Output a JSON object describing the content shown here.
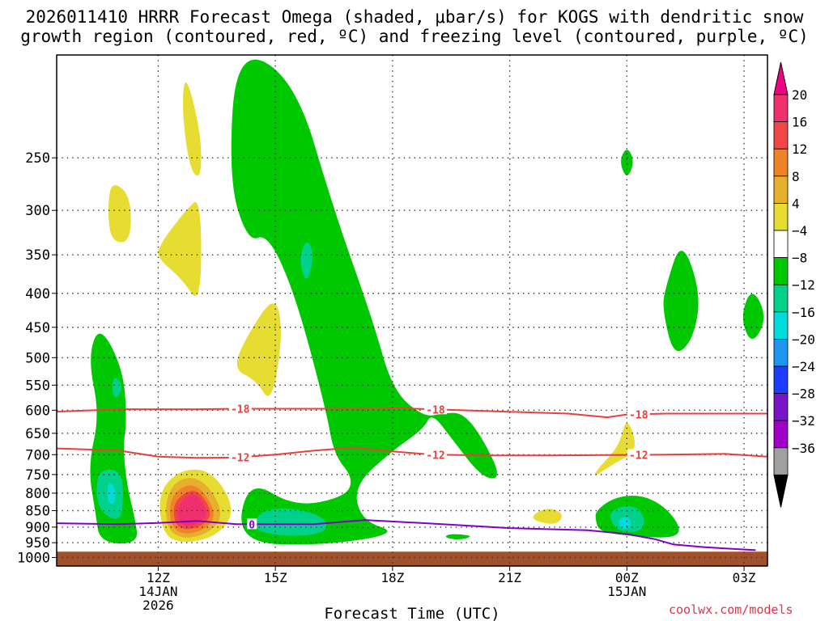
{
  "chart_data": {
    "type": "contour",
    "title_line1": "2026011410 HRRR Forecast Omega (shaded, μbar/s) for KOGS with dendritic snow",
    "title_line2": "growth region (contoured, red, ºC) and freezing level (contoured, purple, ºC)",
    "xlabel": "Forecast Time (UTC)",
    "x_axis": {
      "unit": "forecast hour since 10Z 14JAN2026",
      "range": [
        -0.6,
        17.6
      ],
      "ticks": [
        {
          "hour": 2,
          "label": "12Z",
          "sub1": "14JAN",
          "sub2": "2026"
        },
        {
          "hour": 5,
          "label": "15Z",
          "sub1": "",
          "sub2": ""
        },
        {
          "hour": 8,
          "label": "18Z",
          "sub1": "",
          "sub2": ""
        },
        {
          "hour": 11,
          "label": "21Z",
          "sub1": "",
          "sub2": ""
        },
        {
          "hour": 14,
          "label": "00Z",
          "sub1": "15JAN",
          "sub2": ""
        },
        {
          "hour": 17,
          "label": "03Z",
          "sub1": "",
          "sub2": ""
        }
      ]
    },
    "y_axis": {
      "unit": "hPa",
      "scale": "log-pressure",
      "range_top": 175,
      "range_bottom": 1030,
      "ticks": [
        "250",
        "300",
        "350",
        "400",
        "450",
        "500",
        "550",
        "600",
        "650",
        "700",
        "750",
        "800",
        "850",
        "900",
        "950",
        "1000"
      ]
    },
    "ground_level_hPa": 980,
    "colorbar": {
      "labels": [
        "20",
        "16",
        "12",
        "8",
        "4",
        "−4",
        "−8",
        "−12",
        "−16",
        "−20",
        "−24",
        "−28",
        "−32",
        "−36"
      ],
      "colors": [
        "#f0306e",
        "#f04646",
        "#f08228",
        "#e6af2d",
        "#e6dc32",
        "#ffffff",
        "#00c800",
        "#00d28c",
        "#00dcdc",
        "#1e96f0",
        "#1e3cff",
        "#7814c8",
        "#a000c8",
        "#a0a0a0"
      ],
      "top_arrow_color": "#f00082",
      "bottom_arrow_color": "#000000"
    },
    "series": [
      {
        "name": "-18",
        "type": "temperature contour",
        "color": "#e8403c",
        "points": [
          [
            -0.6,
            603
          ],
          [
            1,
            598
          ],
          [
            3,
            598
          ],
          [
            4,
            597
          ],
          [
            6,
            597
          ],
          [
            7.5,
            597
          ],
          [
            8.2,
            596
          ],
          [
            9,
            598
          ],
          [
            10.5,
            602
          ],
          [
            12.5,
            607
          ],
          [
            13.5,
            615
          ],
          [
            14,
            609
          ],
          [
            15,
            607
          ],
          [
            16,
            607
          ],
          [
            17.6,
            607
          ]
        ],
        "labels": [
          {
            "hour": 4.1,
            "text": "-18"
          },
          {
            "hour": 9.1,
            "text": "-18"
          },
          {
            "hour": 14.3,
            "text": "-18"
          }
        ]
      },
      {
        "name": "-12",
        "type": "temperature contour",
        "color": "#e8403c",
        "points": [
          [
            -0.6,
            685
          ],
          [
            1,
            690
          ],
          [
            2,
            705
          ],
          [
            3,
            708
          ],
          [
            4,
            707
          ],
          [
            5,
            700
          ],
          [
            6,
            690
          ],
          [
            7,
            683
          ],
          [
            8,
            692
          ],
          [
            9,
            700
          ],
          [
            10.5,
            702
          ],
          [
            12,
            702
          ],
          [
            13.5,
            701
          ],
          [
            15,
            700
          ],
          [
            16.5,
            698
          ],
          [
            17.6,
            705
          ]
        ],
        "labels": [
          {
            "hour": 4.1,
            "text": "-12"
          },
          {
            "hour": 9.1,
            "text": "-12"
          },
          {
            "hour": 14.3,
            "text": "-12"
          }
        ]
      },
      {
        "name": "0",
        "type": "freezing level",
        "color": "#8000c8",
        "points": [
          [
            -0.6,
            888
          ],
          [
            1,
            891
          ],
          [
            2,
            887
          ],
          [
            3,
            881
          ],
          [
            4,
            891
          ],
          [
            6,
            891
          ],
          [
            7.3,
            878
          ],
          [
            9,
            889
          ],
          [
            11,
            903
          ],
          [
            13,
            910
          ],
          [
            14,
            922
          ],
          [
            14.7,
            938
          ],
          [
            15.2,
            956
          ],
          [
            16,
            965
          ],
          [
            17.3,
            975
          ]
        ],
        "labels": [
          {
            "hour": 4.4,
            "text": "0"
          }
        ]
      }
    ],
    "omega_regions": [
      {
        "name": "green-omega--8",
        "color": "#00c800",
        "value_range": "-8 to -4",
        "points": [
          [
            4,
            170
          ],
          [
            5.5,
            190
          ],
          [
            6.5,
            300
          ],
          [
            7.5,
            440
          ],
          [
            8,
            560
          ],
          [
            8.8,
            615
          ],
          [
            9.3,
            606
          ],
          [
            9.8,
            605
          ],
          [
            10.3,
            660
          ],
          [
            10.8,
            760
          ],
          [
            10.3,
            760
          ],
          [
            9.5,
            660
          ],
          [
            9,
            605
          ],
          [
            8.8,
            640
          ],
          [
            8,
            690
          ],
          [
            7,
            780
          ],
          [
            7.2,
            880
          ],
          [
            8.2,
            920
          ],
          [
            6.2,
            960
          ],
          [
            4,
            950
          ],
          [
            4.3,
            760
          ],
          [
            5.5,
            840
          ],
          [
            6.8,
            810
          ],
          [
            7,
            760
          ],
          [
            6.5,
            700
          ],
          [
            6.3,
            600
          ],
          [
            5.5,
            400
          ],
          [
            4.8,
            325
          ],
          [
            4.3,
            335
          ],
          [
            3.8,
            270
          ]
        ]
      },
      {
        "name": "green-omega-left",
        "color": "#00c800",
        "value_range": "-8 to -4",
        "points": [
          [
            0.5,
            445
          ],
          [
            1.1,
            520
          ],
          [
            1.2,
            620
          ],
          [
            1.1,
            680
          ],
          [
            1.2,
            780
          ],
          [
            1.4,
            870
          ],
          [
            1.5,
            955
          ],
          [
            0.5,
            950
          ],
          [
            0.4,
            860
          ],
          [
            0.2,
            730
          ],
          [
            0.5,
            610
          ],
          [
            0.2,
            500
          ]
        ]
      },
      {
        "name": "green-omega-00z",
        "color": "#00c800",
        "value_range": "-8 to -4",
        "points": [
          [
            13.2,
            850
          ],
          [
            13.7,
            810
          ],
          [
            14.4,
            805
          ],
          [
            15,
            840
          ],
          [
            15.4,
            905
          ],
          [
            15.2,
            935
          ],
          [
            14.2,
            930
          ],
          [
            13.3,
            915
          ],
          [
            13.2,
            880
          ]
        ]
      },
      {
        "name": "green-omega-01z",
        "color": "#00c800",
        "value_range": "-8 to -4",
        "points": [
          [
            15,
            390
          ],
          [
            15.4,
            330
          ],
          [
            15.9,
            400
          ],
          [
            15.7,
            470
          ],
          [
            15.2,
            500
          ],
          [
            14.9,
            420
          ]
        ]
      },
      {
        "name": "green-omega-03z",
        "color": "#00c800",
        "value_range": "-8 to -4",
        "points": [
          [
            17.2,
            390
          ],
          [
            17.6,
            435
          ],
          [
            17.2,
            480
          ],
          [
            16.9,
            435
          ]
        ]
      },
      {
        "name": "green-omega-250",
        "color": "#00c800",
        "value_range": "-8 to -4",
        "points": [
          [
            14,
            240
          ],
          [
            14.2,
            253
          ],
          [
            14,
            270
          ],
          [
            13.8,
            253
          ]
        ]
      },
      {
        "name": "green-omega-20z",
        "color": "#00c800",
        "value_range": "-8 to -4",
        "points": [
          [
            9.5,
            920
          ],
          [
            10.1,
            928
          ],
          [
            9.7,
            942
          ],
          [
            9.3,
            932
          ]
        ]
      },
      {
        "name": "teal-omega-left",
        "color": "#00d28c",
        "value_range": "-12 to -8",
        "points": [
          [
            0.5,
            735
          ],
          [
            1.1,
            740
          ],
          [
            1.1,
            860
          ],
          [
            0.9,
            880
          ],
          [
            0.5,
            850
          ],
          [
            0.4,
            790
          ]
        ]
      },
      {
        "name": "teal-omega-left-upper",
        "color": "#00d28c",
        "value_range": "-12 to -8",
        "points": [
          [
            0.9,
            530
          ],
          [
            1.1,
            555
          ],
          [
            0.9,
            580
          ],
          [
            0.8,
            555
          ]
        ]
      },
      {
        "name": "teal-omega-16z",
        "color": "#00d28c",
        "value_range": "-12 to -8",
        "points": [
          [
            4.6,
            850
          ],
          [
            5.4,
            840
          ],
          [
            6.3,
            870
          ],
          [
            6.3,
            920
          ],
          [
            5.3,
            930
          ],
          [
            4.4,
            910
          ]
        ]
      },
      {
        "name": "teal-omega-16z-upper",
        "color": "#00d28c",
        "value_range": "-12 to -8",
        "points": [
          [
            5.8,
            330
          ],
          [
            6,
            350
          ],
          [
            5.8,
            390
          ],
          [
            5.6,
            355
          ]
        ]
      },
      {
        "name": "teal-omega-00z",
        "color": "#00d28c",
        "value_range": "-12 to -8",
        "points": [
          [
            13.5,
            850
          ],
          [
            14.2,
            830
          ],
          [
            14.5,
            880
          ],
          [
            14.3,
            920
          ],
          [
            13.7,
            910
          ]
        ]
      },
      {
        "name": "cyan-omega-left",
        "color": "#00dcdc",
        "value_range": "-16 to -12",
        "points": [
          [
            0.7,
            770
          ],
          [
            0.9,
            780
          ],
          [
            0.9,
            830
          ],
          [
            0.7,
            830
          ]
        ]
      },
      {
        "name": "cyan-omega-00z",
        "color": "#00dcdc",
        "value_range": "-16 to -12",
        "points": [
          [
            13.8,
            870
          ],
          [
            14.1,
            870
          ],
          [
            14.1,
            905
          ],
          [
            13.8,
            905
          ]
        ]
      },
      {
        "name": "yellow-omega-250",
        "color": "#e6dc32",
        "value_range": "4 to 8",
        "points": [
          [
            2.7,
            185
          ],
          [
            3.1,
            230
          ],
          [
            3.1,
            270
          ],
          [
            2.8,
            260
          ],
          [
            2.6,
            210
          ]
        ]
      },
      {
        "name": "yellow-omega-300",
        "color": "#e6dc32",
        "value_range": "4 to 8",
        "points": [
          [
            0.8,
            270
          ],
          [
            1.3,
            285
          ],
          [
            1.3,
            335
          ],
          [
            0.8,
            335
          ],
          [
            0.7,
            300
          ]
        ]
      },
      {
        "name": "yellow-omega-350",
        "color": "#e6dc32",
        "value_range": "4 to 8",
        "points": [
          [
            2,
            340
          ],
          [
            2.7,
            300
          ],
          [
            3.1,
            285
          ],
          [
            3.1,
            420
          ],
          [
            2.6,
            380
          ],
          [
            2,
            355
          ]
        ]
      },
      {
        "name": "yellow-omega-500",
        "color": "#e6dc32",
        "value_range": "4 to 8",
        "points": [
          [
            3.9,
            520
          ],
          [
            4.3,
            460
          ],
          [
            5,
            400
          ],
          [
            5.2,
            460
          ],
          [
            4.9,
            590
          ],
          [
            4.5,
            540
          ]
        ]
      },
      {
        "name": "yellow-omega-21z",
        "color": "#e6dc32",
        "value_range": "4 to 8",
        "points": [
          [
            11.6,
            860
          ],
          [
            12.0,
            840
          ],
          [
            12.4,
            860
          ],
          [
            12.2,
            895
          ],
          [
            11.6,
            880
          ]
        ]
      },
      {
        "name": "yellow-omega-00z",
        "color": "#e6dc32",
        "value_range": "4 to 8",
        "points": [
          [
            13.3,
            730
          ],
          [
            13.8,
            680
          ],
          [
            14,
            610
          ],
          [
            14.3,
            690
          ],
          [
            13.7,
            720
          ],
          [
            13.1,
            760
          ]
        ]
      },
      {
        "name": "yellow-omega-13z",
        "color": "#e6dc32",
        "value_range": "4 to 8",
        "points": [
          [
            2,
            795
          ],
          [
            2.6,
            735
          ],
          [
            3.4,
            740
          ],
          [
            4,
            850
          ],
          [
            3.5,
            930
          ],
          [
            2.6,
            955
          ],
          [
            2.1,
            920
          ]
        ]
      },
      {
        "name": "orange-omega-13z",
        "color": "#e6af2d",
        "value_range": "8 to 12",
        "points": [
          [
            2.2,
            805
          ],
          [
            2.6,
            755
          ],
          [
            3.2,
            765
          ],
          [
            3.7,
            860
          ],
          [
            3.3,
            920
          ],
          [
            2.6,
            940
          ],
          [
            2.2,
            900
          ]
        ]
      },
      {
        "name": "orange2-omega-13z",
        "color": "#f08228",
        "value_range": "12 to 16",
        "points": [
          [
            2.3,
            815
          ],
          [
            2.7,
            775
          ],
          [
            3.1,
            785
          ],
          [
            3.5,
            860
          ],
          [
            3.2,
            910
          ],
          [
            2.6,
            925
          ],
          [
            2.3,
            890
          ]
        ]
      },
      {
        "name": "red-omega-13z",
        "color": "#f04646",
        "value_range": "16 to 20",
        "points": [
          [
            2.4,
            825
          ],
          [
            2.8,
            790
          ],
          [
            3.1,
            800
          ],
          [
            3.4,
            860
          ],
          [
            3.1,
            900
          ],
          [
            2.6,
            910
          ],
          [
            2.4,
            880
          ]
        ]
      },
      {
        "name": "magenta-omega-13z",
        "color": "#f0306e",
        "value_range": "20+",
        "points": [
          [
            2.5,
            835
          ],
          [
            2.8,
            800
          ],
          [
            3.05,
            810
          ],
          [
            3.3,
            860
          ],
          [
            3.0,
            890
          ],
          [
            2.7,
            900
          ],
          [
            2.5,
            875
          ]
        ]
      }
    ]
  },
  "credit": "coolwx.com/models"
}
